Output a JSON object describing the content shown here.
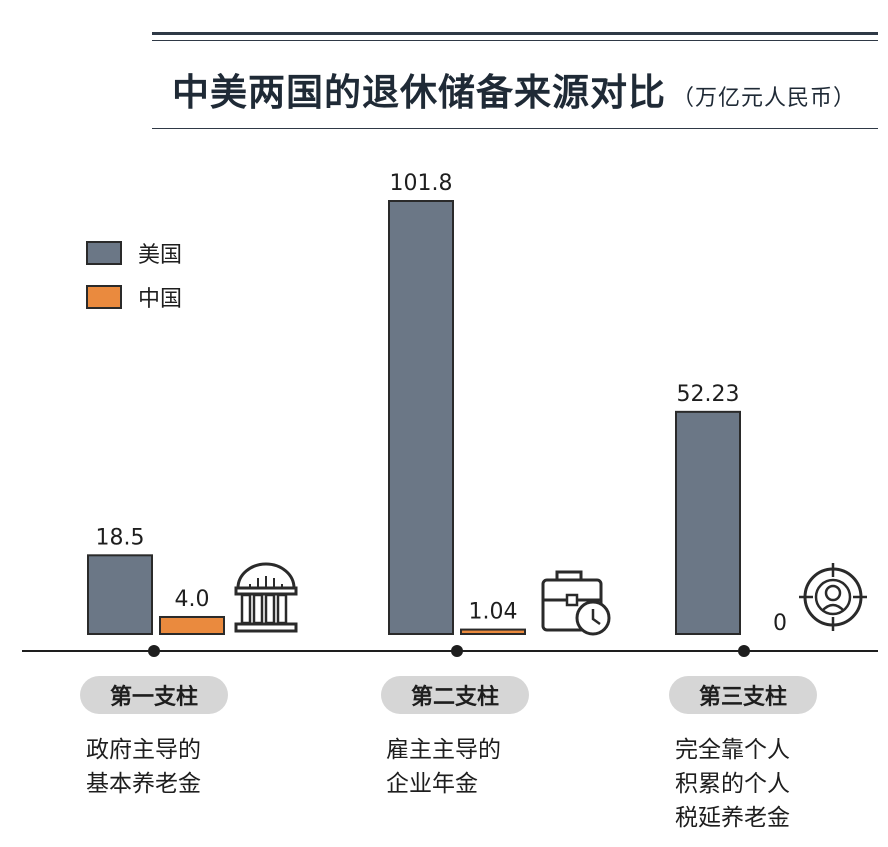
{
  "title": {
    "main": "中美两国的退休储备来源对比",
    "unit": "（万亿元人民币）"
  },
  "colors": {
    "us": "#6b7786",
    "china": "#ea8a3e",
    "axis": "#1e1e1e",
    "pill": "#d6d6d6"
  },
  "legend": [
    {
      "name": "美国",
      "color": "#6b7786"
    },
    {
      "name": "中国",
      "color": "#ea8a3e"
    }
  ],
  "pillars": [
    {
      "label": "第一支柱",
      "description": "政府主导的\n基本养老金",
      "icon": "government-building-icon"
    },
    {
      "label": "第二支柱",
      "description": "雇主主导的\n企业年金",
      "icon": "briefcase-clock-icon"
    },
    {
      "label": "第三支柱",
      "description": "完全靠个人\n积累的个人\n税延养老金",
      "icon": "person-target-icon"
    }
  ],
  "chart_data": {
    "type": "bar",
    "title": "中美两国的退休储备来源对比（万亿元人民币）",
    "categories": [
      "第一支柱",
      "第二支柱",
      "第三支柱"
    ],
    "series": [
      {
        "name": "美国",
        "values": [
          18.5,
          101.8,
          52.23
        ],
        "labels": [
          "18.5",
          "101.8",
          "52.23"
        ]
      },
      {
        "name": "中国",
        "values": [
          4.0,
          1.04,
          0
        ],
        "labels": [
          "4.0",
          "1.04",
          "0"
        ]
      }
    ],
    "ylim": [
      0,
      101.8
    ],
    "legend_position": "upper-left",
    "grid": false
  }
}
